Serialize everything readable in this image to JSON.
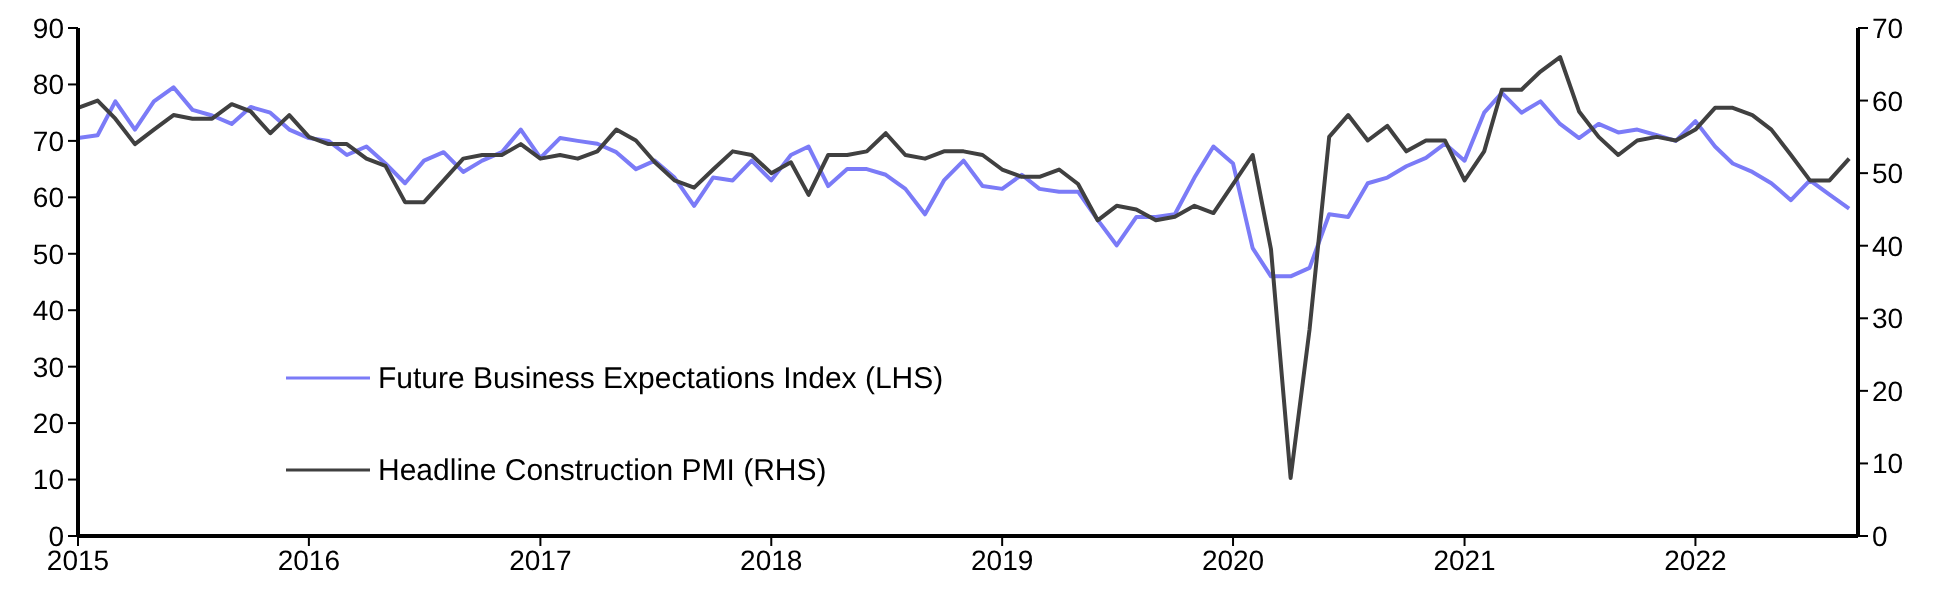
{
  "chart_data": {
    "type": "line",
    "x": [
      "2015-01",
      "2015-02",
      "2015-03",
      "2015-04",
      "2015-05",
      "2015-06",
      "2015-07",
      "2015-08",
      "2015-09",
      "2015-10",
      "2015-11",
      "2015-12",
      "2016-01",
      "2016-02",
      "2016-03",
      "2016-04",
      "2016-05",
      "2016-06",
      "2016-07",
      "2016-08",
      "2016-09",
      "2016-10",
      "2016-11",
      "2016-12",
      "2017-01",
      "2017-02",
      "2017-03",
      "2017-04",
      "2017-05",
      "2017-06",
      "2017-07",
      "2017-08",
      "2017-09",
      "2017-10",
      "2017-11",
      "2017-12",
      "2018-01",
      "2018-02",
      "2018-03",
      "2018-04",
      "2018-05",
      "2018-06",
      "2018-07",
      "2018-08",
      "2018-09",
      "2018-10",
      "2018-11",
      "2018-12",
      "2019-01",
      "2019-02",
      "2019-03",
      "2019-04",
      "2019-05",
      "2019-06",
      "2019-07",
      "2019-08",
      "2019-09",
      "2019-10",
      "2019-11",
      "2019-12",
      "2020-01",
      "2020-02",
      "2020-03",
      "2020-04",
      "2020-05",
      "2020-06",
      "2020-07",
      "2020-08",
      "2020-09",
      "2020-10",
      "2020-11",
      "2020-12",
      "2021-01",
      "2021-02",
      "2021-03",
      "2021-04",
      "2021-05",
      "2021-06",
      "2021-07",
      "2021-08",
      "2021-09",
      "2021-10",
      "2021-11",
      "2021-12",
      "2022-01",
      "2022-02",
      "2022-03",
      "2022-04",
      "2022-05",
      "2022-06",
      "2022-07",
      "2022-08",
      "2022-09"
    ],
    "series": [
      {
        "name": "Future Business Expectations Index (LHS)",
        "color": "#7b7bf7",
        "values": [
          70.5,
          71,
          77,
          72,
          77,
          79.5,
          75.5,
          74.5,
          73,
          76,
          75,
          72,
          70.5,
          70,
          67.5,
          69,
          66,
          62.5,
          66.5,
          68,
          64.5,
          66.5,
          68,
          72,
          67,
          70.5,
          70,
          69.5,
          68,
          65,
          66.5,
          63.5,
          58.5,
          63.5,
          63,
          66.5,
          63,
          67.5,
          69,
          62,
          65,
          65,
          64,
          61.5,
          57,
          63,
          66.5,
          62,
          61.5,
          64,
          61.5,
          61,
          61,
          56,
          51.5,
          56.5,
          56.5,
          57,
          63.5,
          69,
          66,
          51,
          46,
          46,
          47.5,
          57,
          56.5,
          62.5,
          63.5,
          65.5,
          67,
          69.5,
          66.5,
          75,
          78.5,
          75,
          77,
          73,
          70.5,
          73,
          71.5,
          72,
          71,
          70,
          73.5,
          69,
          66,
          64.5,
          62.5,
          59.5,
          63,
          60.5,
          58
        ]
      },
      {
        "name": "Headline Construction PMI (RHS)",
        "color": "#404040",
        "axis": "y2",
        "values": [
          59,
          60,
          57.5,
          54,
          56,
          58,
          57.5,
          57.5,
          59.5,
          58.5,
          55.5,
          58,
          55,
          54,
          54,
          52,
          51,
          46,
          46,
          49,
          52,
          52.5,
          52.5,
          54,
          52,
          52.5,
          52,
          53,
          56,
          54.5,
          51.5,
          49,
          48,
          50.5,
          53,
          52.5,
          50,
          51.5,
          47,
          52.5,
          52.5,
          53,
          55.5,
          52.5,
          52,
          53,
          53,
          52.5,
          50.5,
          49.5,
          49.5,
          50.5,
          48.5,
          43.5,
          45.5,
          45,
          43.5,
          44,
          45.5,
          44.5,
          48.5,
          52.5,
          39.5,
          8,
          28.5,
          55,
          58,
          54.5,
          56.5,
          53,
          54.5,
          54.5,
          49,
          53,
          61.5,
          61.5,
          64,
          66,
          58.5,
          55,
          52.5,
          54.5,
          55,
          54.5,
          56,
          59,
          59,
          58,
          56,
          52.5,
          49,
          49,
          52
        ]
      }
    ],
    "xlim": [
      "2015-01",
      "2022-09-15"
    ],
    "xticks": [
      "2015",
      "2016",
      "2017",
      "2018",
      "2019",
      "2020",
      "2021",
      "2022"
    ],
    "ylim": [
      0,
      90
    ],
    "yticks": [
      0,
      10,
      20,
      30,
      40,
      50,
      60,
      70,
      80,
      90
    ],
    "y2lim": [
      0,
      70
    ],
    "y2ticks": [
      0,
      10,
      20,
      30,
      40,
      50,
      60,
      70
    ],
    "grid": false,
    "legend": "bottom left"
  }
}
